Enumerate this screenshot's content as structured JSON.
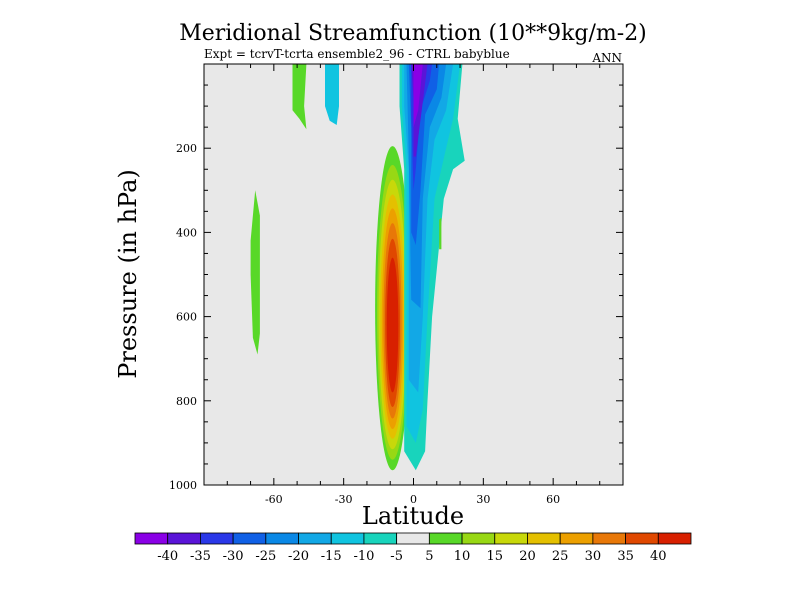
{
  "chart_data": {
    "type": "heatmap",
    "title": "Meridional Streamfunction (10**9kg/m-2)",
    "subtitle": "Expt = tcrvT-tcrta  ensemble2_96 - CTRL babyblue",
    "season": "ANN",
    "xlabel": "Latitude",
    "ylabel": "Pressure (in hPa)",
    "xlim": [
      -90,
      90
    ],
    "ylim": [
      0,
      1000
    ],
    "y_reversed": true,
    "x_ticks": [
      -60,
      -30,
      0,
      30,
      60
    ],
    "x_tick_labels": [
      "-60",
      "-30",
      "0",
      "30",
      "60"
    ],
    "y_ticks": [
      200,
      400,
      600,
      800,
      1000
    ],
    "y_tick_labels": [
      "200",
      "400",
      "600",
      "800",
      "1000"
    ],
    "background": "#e8e8e8",
    "colorbar": {
      "levels": [
        -40,
        -35,
        -30,
        -25,
        -20,
        -15,
        -10,
        -5,
        5,
        10,
        15,
        20,
        25,
        30,
        35,
        40
      ],
      "labels": [
        "-40",
        "-35",
        "-30",
        "-25",
        "-20",
        "-15",
        "-10",
        "-5",
        "5",
        "10",
        "15",
        "20",
        "25",
        "30",
        "35",
        "40"
      ],
      "colors": [
        "#8a00e6",
        "#5a14d8",
        "#2a38e8",
        "#1060e6",
        "#0a88e6",
        "#12a8e6",
        "#10c4e0",
        "#18d4bc",
        "#e8e8e8",
        "#58d828",
        "#98d814",
        "#c8d80a",
        "#e4c000",
        "#eca000",
        "#e87808",
        "#e04800",
        "#d82000"
      ]
    },
    "features": [
      {
        "name": "tropical-positive-cell",
        "sign": "positive",
        "lat_range": [
          -18,
          -2
        ],
        "pressure_range": [
          195,
          965
        ],
        "peak_value": 45,
        "peak_lat": -9,
        "peak_pressure": 620
      },
      {
        "name": "tropical-negative-cell",
        "sign": "negative",
        "lat_range": [
          -5,
          20
        ],
        "pressure_range": [
          0,
          965
        ],
        "peak_value": -40,
        "peak_lat": 3,
        "peak_pressure": 150
      },
      {
        "name": "southern-weak-positive-band",
        "sign": "positive",
        "lat_range": [
          -70,
          -66
        ],
        "pressure_range": [
          300,
          690
        ],
        "peak_value": 5
      },
      {
        "name": "southern-upper-positive",
        "sign": "positive",
        "lat_range": [
          -52,
          -46
        ],
        "pressure_range": [
          0,
          160
        ],
        "peak_value": 5
      },
      {
        "name": "southern-upper-negative",
        "sign": "negative",
        "lat_range": [
          -38,
          -32
        ],
        "pressure_range": [
          0,
          145
        ],
        "peak_value": -10
      },
      {
        "name": "northern-small-positive",
        "sign": "positive",
        "lat_range": [
          11,
          12
        ],
        "pressure_range": [
          365,
          440
        ],
        "peak_value": 5
      }
    ]
  }
}
